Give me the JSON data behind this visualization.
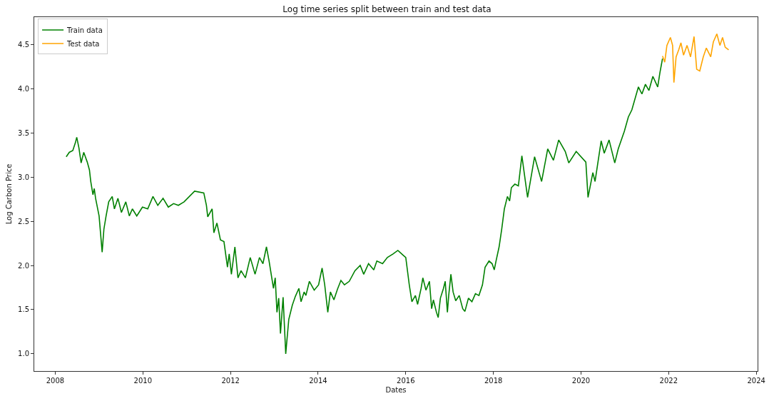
{
  "chart_data": {
    "type": "line",
    "title": "Log time series split between train and test data",
    "xlabel": "Dates",
    "ylabel": "Log Carbon Price",
    "xlim": [
      2007.52,
      2024.03
    ],
    "ylim": [
      0.805,
      4.81
    ],
    "xticks": [
      2008,
      2010,
      2012,
      2014,
      2016,
      2018,
      2020,
      2022,
      2024
    ],
    "yticks": [
      {
        "value": 1.0,
        "label": "1.0"
      },
      1.5,
      {
        "value": 2.0,
        "label": "2.0"
      },
      2.5,
      {
        "value": 3.0,
        "label": "3.0"
      },
      3.5,
      {
        "value": 4.0,
        "label": "4.0"
      },
      4.5
    ],
    "legend": "top left",
    "marker": "none",
    "line_style": "solid",
    "series": [
      {
        "name": "Train data",
        "color": "#008000",
        "x": [
          2008.25,
          2008.32,
          2008.4,
          2008.46,
          2008.49,
          2008.54,
          2008.59,
          2008.65,
          2008.73,
          2008.78,
          2008.81,
          2008.86,
          2008.89,
          2008.92,
          2009.0,
          2009.07,
          2009.11,
          2009.16,
          2009.22,
          2009.3,
          2009.35,
          2009.43,
          2009.51,
          2009.61,
          2009.69,
          2009.76,
          2009.86,
          2009.99,
          2010.11,
          2010.23,
          2010.34,
          2010.46,
          2010.58,
          2010.7,
          2010.81,
          2010.94,
          2011.18,
          2011.39,
          2011.45,
          2011.48,
          2011.58,
          2011.62,
          2011.69,
          2011.77,
          2011.85,
          2011.93,
          2011.97,
          2012.02,
          2012.1,
          2012.17,
          2012.24,
          2012.34,
          2012.45,
          2012.56,
          2012.66,
          2012.74,
          2012.82,
          2012.88,
          2012.98,
          2013.02,
          2013.06,
          2013.1,
          2013.14,
          2013.2,
          2013.26,
          2013.33,
          2013.41,
          2013.48,
          2013.56,
          2013.61,
          2013.68,
          2013.72,
          2013.8,
          2013.91,
          2014.01,
          2014.09,
          2014.15,
          2014.22,
          2014.28,
          2014.36,
          2014.44,
          2014.52,
          2014.6,
          2014.71,
          2014.84,
          2014.96,
          2015.04,
          2015.15,
          2015.27,
          2015.34,
          2015.47,
          2015.58,
          2015.71,
          2015.82,
          2015.93,
          2016.0,
          2016.08,
          2016.14,
          2016.22,
          2016.27,
          2016.35,
          2016.39,
          2016.46,
          2016.54,
          2016.59,
          2016.63,
          2016.7,
          2016.74,
          2016.79,
          2016.86,
          2016.9,
          2016.95,
          2016.98,
          2017.03,
          2017.08,
          2017.14,
          2017.22,
          2017.3,
          2017.35,
          2017.43,
          2017.51,
          2017.59,
          2017.67,
          2017.75,
          2017.81,
          2017.9,
          2017.97,
          2018.02,
          2018.06,
          2018.13,
          2018.19,
          2018.25,
          2018.32,
          2018.37,
          2018.41,
          2018.49,
          2018.57,
          2018.65,
          2018.78,
          2018.94,
          2019.1,
          2019.24,
          2019.37,
          2019.49,
          2019.64,
          2019.72,
          2019.89,
          2020.11,
          2020.16,
          2020.27,
          2020.32,
          2020.46,
          2020.53,
          2020.64,
          2020.77,
          2020.85,
          2020.99,
          2021.08,
          2021.16,
          2021.31,
          2021.39,
          2021.47,
          2021.55,
          2021.64,
          2021.75,
          2021.8,
          2021.86
        ],
        "values": [
          3.23,
          3.28,
          3.3,
          3.39,
          3.45,
          3.33,
          3.16,
          3.28,
          3.17,
          3.08,
          2.95,
          2.8,
          2.87,
          2.76,
          2.56,
          2.15,
          2.41,
          2.56,
          2.72,
          2.78,
          2.64,
          2.76,
          2.6,
          2.72,
          2.56,
          2.64,
          2.56,
          2.66,
          2.64,
          2.78,
          2.68,
          2.76,
          2.66,
          2.7,
          2.68,
          2.72,
          2.84,
          2.82,
          2.68,
          2.55,
          2.64,
          2.37,
          2.48,
          2.29,
          2.27,
          1.98,
          2.13,
          1.9,
          2.21,
          1.86,
          1.94,
          1.86,
          2.09,
          1.9,
          2.09,
          2.02,
          2.21,
          2.05,
          1.74,
          1.86,
          1.47,
          1.63,
          1.23,
          1.64,
          1.0,
          1.39,
          1.55,
          1.65,
          1.74,
          1.59,
          1.7,
          1.66,
          1.82,
          1.72,
          1.78,
          1.97,
          1.78,
          1.47,
          1.7,
          1.61,
          1.73,
          1.83,
          1.78,
          1.82,
          1.94,
          2.0,
          1.9,
          2.02,
          1.95,
          2.05,
          2.02,
          2.09,
          2.13,
          2.17,
          2.12,
          2.09,
          1.78,
          1.59,
          1.66,
          1.56,
          1.74,
          1.86,
          1.72,
          1.82,
          1.51,
          1.61,
          1.47,
          1.41,
          1.63,
          1.74,
          1.82,
          1.47,
          1.66,
          1.9,
          1.7,
          1.6,
          1.66,
          1.51,
          1.48,
          1.63,
          1.59,
          1.68,
          1.66,
          1.78,
          1.98,
          2.05,
          2.02,
          1.95,
          2.05,
          2.21,
          2.41,
          2.64,
          2.78,
          2.73,
          2.88,
          2.92,
          2.9,
          3.24,
          2.77,
          3.23,
          2.95,
          3.32,
          3.19,
          3.42,
          3.29,
          3.16,
          3.29,
          3.17,
          2.77,
          3.05,
          2.95,
          3.41,
          3.27,
          3.42,
          3.16,
          3.32,
          3.52,
          3.68,
          3.76,
          4.02,
          3.94,
          4.05,
          3.98,
          4.14,
          4.02,
          4.18,
          4.34
        ]
      },
      {
        "name": "Test data",
        "color": "#ffa500",
        "x": [
          2021.86,
          2021.91,
          2021.96,
          2022.04,
          2022.09,
          2022.12,
          2022.17,
          2022.23,
          2022.28,
          2022.34,
          2022.42,
          2022.5,
          2022.58,
          2022.64,
          2022.71,
          2022.79,
          2022.86,
          2022.96,
          2023.02,
          2023.1,
          2023.17,
          2023.23,
          2023.29,
          2023.37
        ],
        "values": [
          4.37,
          4.3,
          4.49,
          4.58,
          4.49,
          4.07,
          4.36,
          4.44,
          4.52,
          4.38,
          4.49,
          4.36,
          4.59,
          4.22,
          4.2,
          4.36,
          4.46,
          4.36,
          4.53,
          4.62,
          4.49,
          4.58,
          4.47,
          4.44
        ]
      }
    ]
  }
}
